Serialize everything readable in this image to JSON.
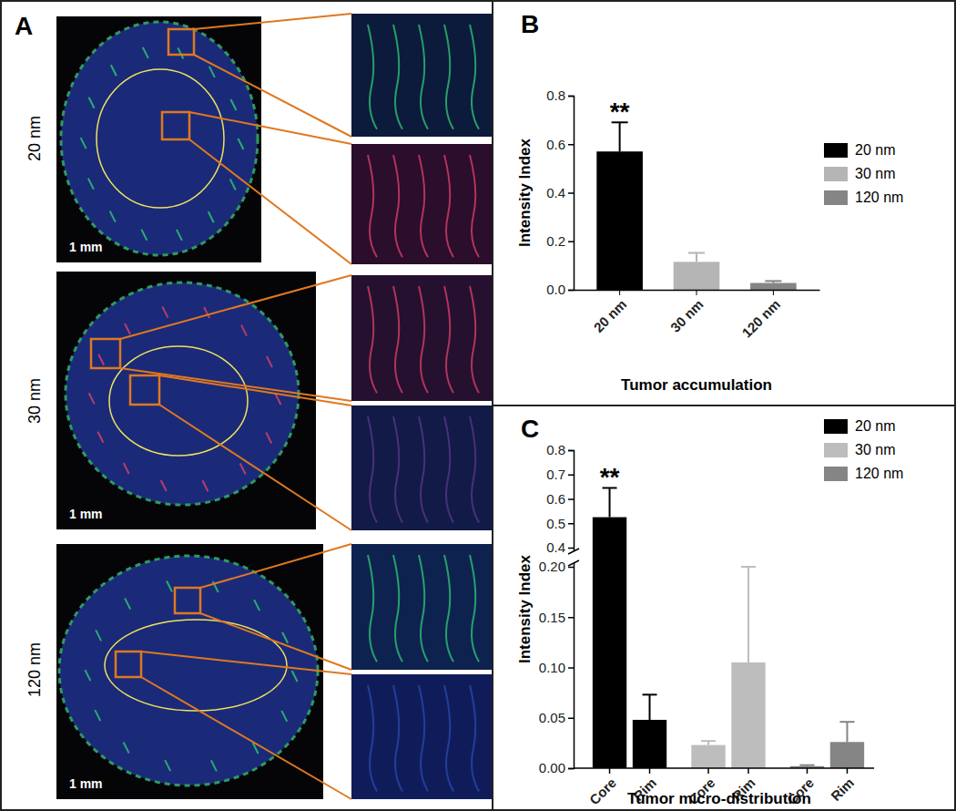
{
  "chart_data": [
    {
      "type": "bar",
      "title": "B",
      "categories": [
        "20 nm",
        "30 nm",
        "120 nm"
      ],
      "values": [
        0.57,
        0.115,
        0.028
      ],
      "errors": [
        0.12,
        0.037,
        0.008
      ],
      "colors": [
        "#000000",
        "#b5b5b5",
        "#858585"
      ],
      "xlabel": "Tumor accumulation",
      "ylabel": "Intensity Index",
      "ylim": [
        0,
        0.8
      ],
      "yticks": [
        {
          "value": 0,
          "label": "0.0"
        },
        0.2,
        0.4,
        0.6,
        0.8
      ],
      "grid": false,
      "legend": "top-right",
      "annotations": [
        {
          "text": "**",
          "index": 0
        }
      ]
    },
    {
      "type": "bar",
      "title": "C",
      "categories": [
        "Core",
        "Rim"
      ],
      "series": [
        {
          "name": "20 nm",
          "color": "#000000",
          "values": [
            0.525,
            0.048
          ],
          "errors": [
            0.12,
            0.025
          ]
        },
        {
          "name": "30 nm",
          "color": "#bdbdbd",
          "values": [
            0.023,
            0.105
          ],
          "errors": [
            0.004,
            0.095
          ]
        },
        {
          "name": "120 nm",
          "color": "#858585",
          "values": [
            0.002,
            0.026
          ],
          "errors": [
            0.001,
            0.02
          ]
        }
      ],
      "xlabel": "Tumor micro-distribution",
      "ylabel": "Intensity Index",
      "ylim": [
        0,
        0.8
      ],
      "y_break": [
        0.2,
        0.4
      ],
      "yticks": [
        {
          "value": 0,
          "label": "0.00"
        },
        {
          "value": 0.05,
          "label": "0.05"
        },
        {
          "value": 0.1,
          "label": "0.10"
        },
        0.15,
        {
          "value": 0.2,
          "label": "0.20"
        },
        0.4,
        0.5,
        0.6,
        0.7,
        0.8
      ],
      "grid": false,
      "legend": "top-right",
      "annotations": [
        {
          "text": "**",
          "series": 0,
          "index": 0
        }
      ]
    }
  ],
  "image_panel": {
    "label": "A",
    "rows": [
      {
        "label": "20 nm",
        "scale_bar": "1 mm"
      },
      {
        "label": "30 nm",
        "scale_bar": "1 mm"
      },
      {
        "label": "120 nm",
        "scale_bar": "1 mm"
      }
    ]
  }
}
